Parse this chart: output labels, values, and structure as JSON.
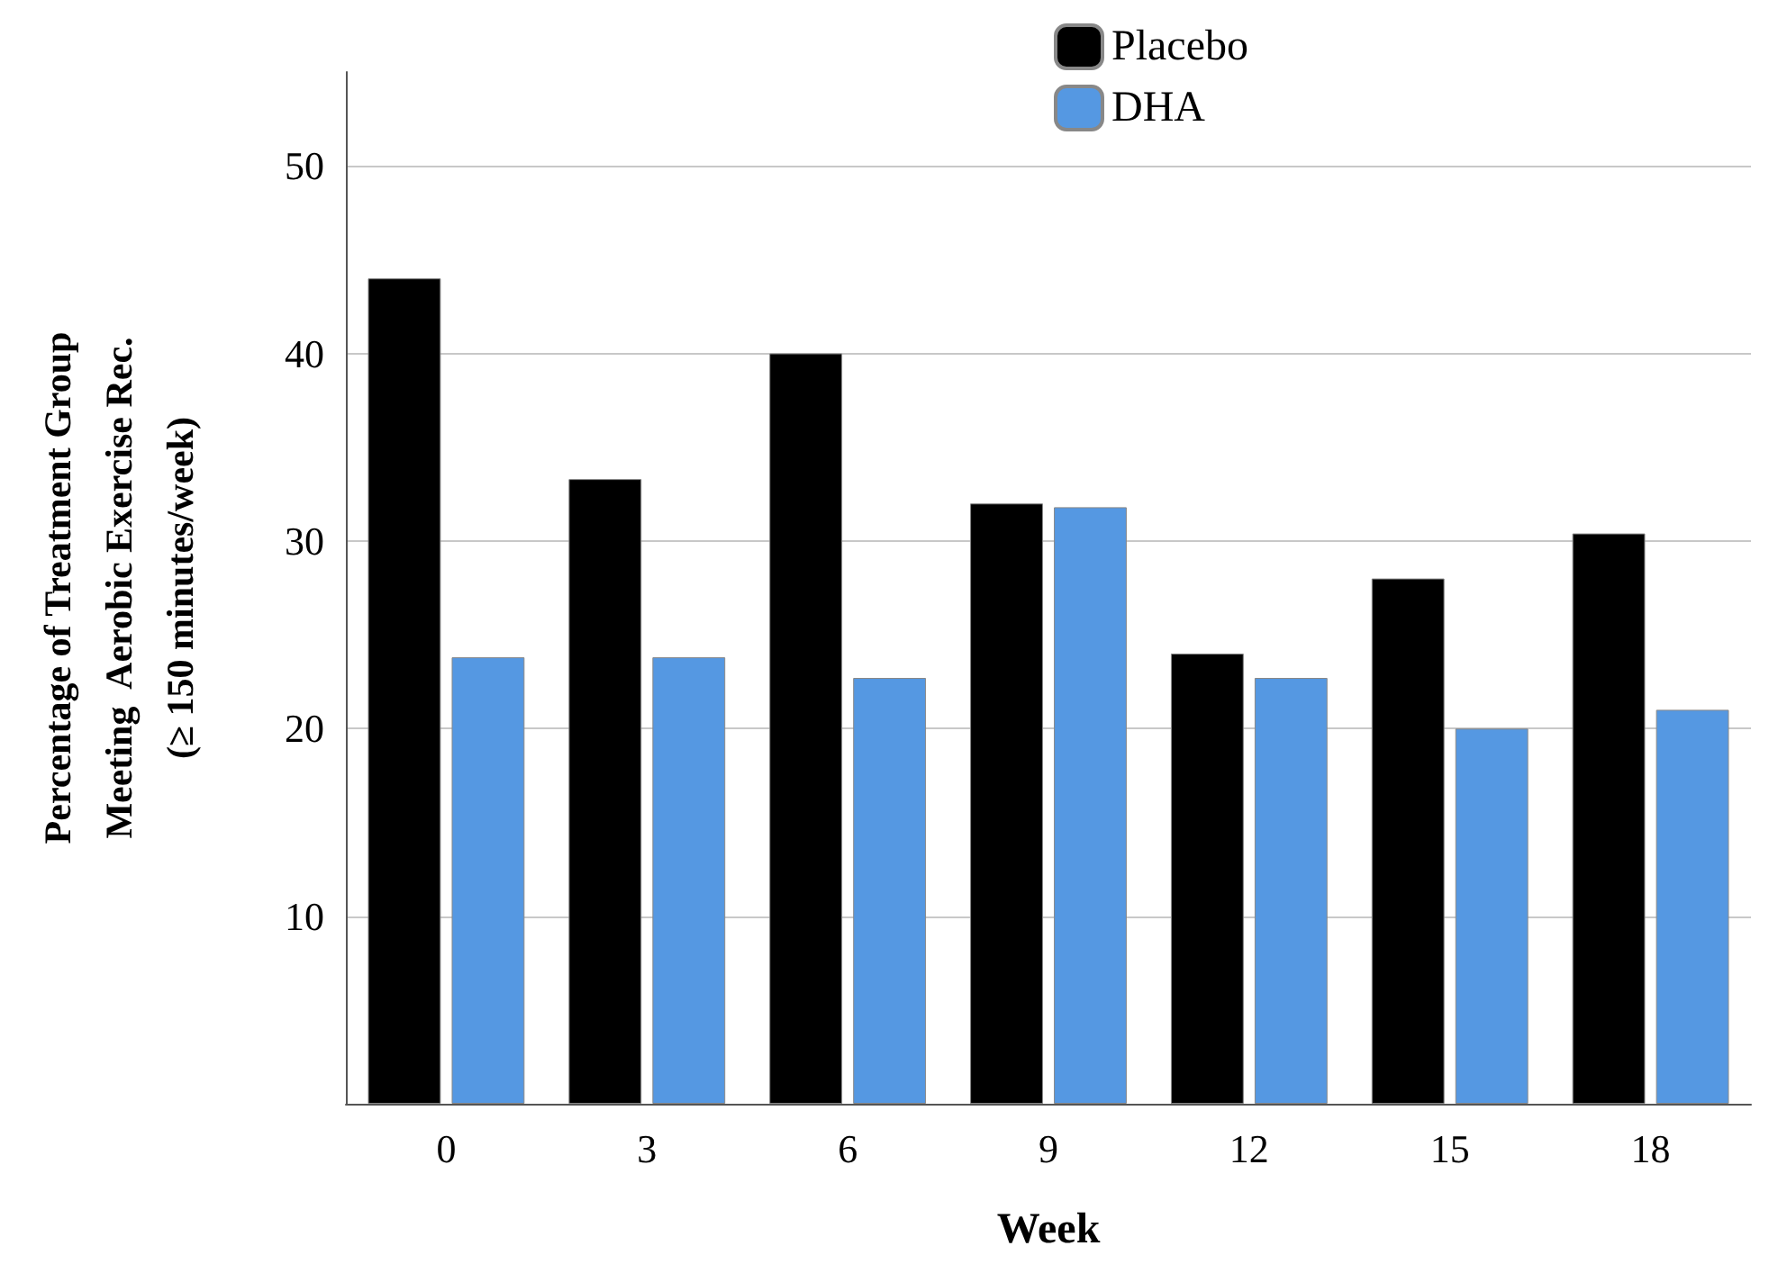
{
  "chart_data": {
    "type": "bar",
    "xlabel": "Week",
    "ylabel": "Percentage of Treatment Group\nMeeting  Aerobic Exercise Rec.\n(≥ 150 minutes/week)",
    "categories": [
      "0",
      "3",
      "6",
      "9",
      "12",
      "15",
      "18"
    ],
    "series": [
      {
        "name": "Placebo",
        "color": "#000000",
        "values": [
          44,
          33.3,
          40,
          32,
          24,
          28,
          30.4
        ]
      },
      {
        "name": "DHA",
        "color": "#5598e2",
        "values": [
          23.8,
          23.8,
          22.7,
          31.8,
          22.7,
          20,
          21
        ]
      }
    ],
    "ylim": [
      0,
      55
    ],
    "yticks": [
      10,
      20,
      30,
      40,
      50
    ],
    "grid": "y",
    "legend": "top right"
  }
}
